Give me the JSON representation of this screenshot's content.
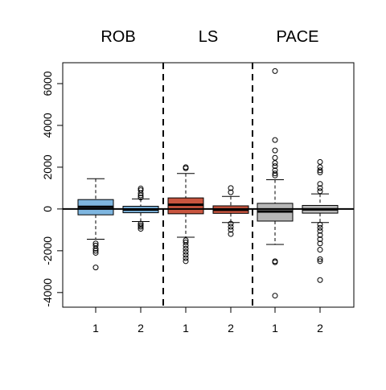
{
  "chart_data": {
    "type": "boxplot",
    "title": "",
    "xlabel": "",
    "ylabel": "",
    "ylim": [
      -4700,
      7000
    ],
    "y_ticks": [
      -4000,
      -2000,
      0,
      2000,
      4000,
      6000
    ],
    "reference_line_y": 0,
    "grid": false,
    "groups": [
      "ROB",
      "LS",
      "PACE"
    ],
    "x_tick_labels": [
      "1",
      "2",
      "1",
      "2",
      "1",
      "2"
    ],
    "boxes": [
      {
        "group": "ROB",
        "label": "1",
        "color": "#7EB6E0",
        "q1": -280,
        "median": 100,
        "q3": 450,
        "whisker_low": -1450,
        "whisker_high": 1450,
        "outliers": [
          -1650,
          -1750,
          -1900,
          -2000,
          -2100,
          -2800
        ]
      },
      {
        "group": "ROB",
        "label": "2",
        "color": "#7EB6E0",
        "q1": -180,
        "median": -30,
        "q3": 130,
        "whisker_low": -600,
        "whisker_high": 480,
        "outliers": [
          550,
          650,
          750,
          900,
          980,
          -700,
          -780,
          -850,
          -950
        ]
      },
      {
        "group": "LS",
        "label": "1",
        "color": "#C9553F",
        "q1": -230,
        "median": 200,
        "q3": 530,
        "whisker_low": -1350,
        "whisker_high": 1700,
        "outliers": [
          1950,
          2000,
          -1500,
          -1600,
          -1750,
          -1900,
          -2050,
          -2200,
          -2350,
          -2500
        ]
      },
      {
        "group": "LS",
        "label": "2",
        "color": "#C9553F",
        "q1": -210,
        "median": -40,
        "q3": 150,
        "whisker_low": -650,
        "whisker_high": 600,
        "outliers": [
          800,
          1000,
          -700,
          -850,
          -1000,
          -1200
        ]
      },
      {
        "group": "PACE",
        "label": "1",
        "color": "#B8B8B8",
        "q1": -580,
        "median": -120,
        "q3": 270,
        "whisker_low": -1700,
        "whisker_high": 1400,
        "outliers": [
          1600,
          1700,
          1850,
          2050,
          2200,
          2450,
          2800,
          3300,
          6600,
          -2500,
          -2550,
          -4150
        ]
      },
      {
        "group": "PACE",
        "label": "2",
        "color": "#B8B8B8",
        "q1": -200,
        "median": -20,
        "q3": 170,
        "whisker_low": -650,
        "whisker_high": 720,
        "outliers": [
          850,
          1000,
          1200,
          1750,
          1850,
          2000,
          2250,
          -750,
          -900,
          -1050,
          -1250,
          -1450,
          -1650,
          -1950,
          -2400,
          -2500,
          -3400
        ]
      }
    ]
  }
}
